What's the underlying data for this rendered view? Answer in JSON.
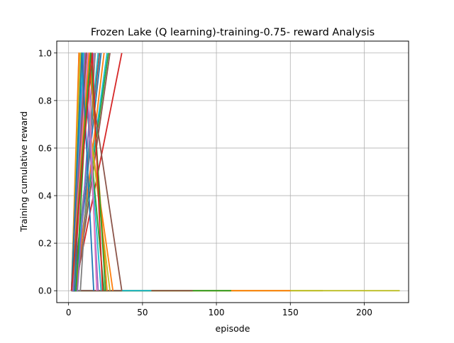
{
  "chart_data": {
    "type": "line",
    "title": "Frozen Lake (Q learning)-training-0.75- reward Analysis",
    "xlabel": "episode",
    "ylabel": "Training cumulative reward",
    "xlim": [
      -8,
      230
    ],
    "ylim": [
      -0.05,
      1.05
    ],
    "xticks": [
      0,
      50,
      100,
      150,
      200
    ],
    "yticks": [
      0.0,
      0.2,
      0.4,
      0.6,
      0.8,
      1.0
    ],
    "xtick_labels": [
      "0",
      "50",
      "100",
      "150",
      "200"
    ],
    "ytick_labels": [
      "0.0",
      "0.2",
      "0.4",
      "0.6",
      "0.8",
      "1.0"
    ],
    "grid": true,
    "legend": "none",
    "palette": [
      "#1f77b4",
      "#ff7f0e",
      "#2ca02c",
      "#d62728",
      "#9467bd",
      "#8c564b",
      "#e377c2",
      "#7f7f7f",
      "#bcbd22",
      "#17becf"
    ],
    "series": [
      {
        "x": [
          2,
          224
        ],
        "y": [
          0,
          0
        ],
        "color": "#bcbd22"
      },
      {
        "x": [
          2,
          172
        ],
        "y": [
          0,
          0
        ],
        "color": "#bcbd22"
      },
      {
        "x": [
          2,
          150
        ],
        "y": [
          0,
          0
        ],
        "color": "#ff7f0e"
      },
      {
        "x": [
          2,
          110
        ],
        "y": [
          0,
          0
        ],
        "color": "#2ca02c"
      },
      {
        "x": [
          2,
          84
        ],
        "y": [
          0,
          0
        ],
        "color": "#8c564b"
      },
      {
        "x": [
          2,
          56
        ],
        "y": [
          0,
          0
        ],
        "color": "#17becf"
      },
      {
        "x": [
          2,
          36
        ],
        "y": [
          0,
          0
        ],
        "color": "#8c564b"
      },
      {
        "x": [
          2,
          4,
          36
        ],
        "y": [
          0,
          0,
          1
        ],
        "color": "#d62728"
      },
      {
        "x": [
          2,
          5,
          28
        ],
        "y": [
          0,
          0,
          1
        ],
        "color": "#8c564b"
      },
      {
        "x": [
          2,
          4,
          27
        ],
        "y": [
          0,
          0,
          1
        ],
        "color": "#2ca02c"
      },
      {
        "x": [
          2,
          4,
          26
        ],
        "y": [
          0,
          0,
          1
        ],
        "color": "#17becf"
      },
      {
        "x": [
          2,
          5,
          24
        ],
        "y": [
          0,
          0,
          1
        ],
        "color": "#ff7f0e"
      },
      {
        "x": [
          2,
          4,
          22
        ],
        "y": [
          0,
          0,
          1
        ],
        "color": "#1f77b4"
      },
      {
        "x": [
          2,
          3,
          21
        ],
        "y": [
          0,
          0,
          1
        ],
        "color": "#8c564b"
      },
      {
        "x": [
          2,
          4,
          20
        ],
        "y": [
          0,
          0,
          1
        ],
        "color": "#17becf"
      },
      {
        "x": [
          2,
          8,
          18
        ],
        "y": [
          0,
          0,
          1
        ],
        "color": "#7f7f7f"
      },
      {
        "x": [
          2,
          6,
          17
        ],
        "y": [
          0,
          0,
          1
        ],
        "color": "#9467bd"
      },
      {
        "x": [
          2,
          3,
          15
        ],
        "y": [
          0,
          0,
          1
        ],
        "color": "#e377c2"
      },
      {
        "x": [
          2,
          5,
          14
        ],
        "y": [
          0,
          0,
          1
        ],
        "color": "#2ca02c"
      },
      {
        "x": [
          2,
          4,
          12
        ],
        "y": [
          0,
          0,
          1
        ],
        "color": "#d62728"
      },
      {
        "x": [
          2,
          3,
          11
        ],
        "y": [
          0,
          0,
          1
        ],
        "color": "#ff7f0e"
      },
      {
        "x": [
          2,
          4,
          10
        ],
        "y": [
          0,
          0,
          1
        ],
        "color": "#1f77b4"
      },
      {
        "x": [
          2,
          3,
          8
        ],
        "y": [
          0,
          0,
          1
        ],
        "color": "#bcbd22"
      },
      {
        "x": [
          2,
          3,
          7
        ],
        "y": [
          0,
          0,
          1
        ],
        "color": "#9467bd"
      },
      {
        "x": [
          2,
          7,
          30
        ],
        "y": [
          0,
          1,
          0
        ],
        "color": "#ff7f0e"
      },
      {
        "x": [
          2,
          8,
          28
        ],
        "y": [
          0,
          1,
          0
        ],
        "color": "#bcbd22"
      },
      {
        "x": [
          2,
          9,
          24
        ],
        "y": [
          0,
          1,
          0
        ],
        "color": "#2ca02c"
      },
      {
        "x": [
          2,
          10,
          22
        ],
        "y": [
          0,
          1,
          0
        ],
        "color": "#17becf"
      },
      {
        "x": [
          2,
          11,
          20
        ],
        "y": [
          0,
          1,
          0
        ],
        "color": "#9467bd"
      },
      {
        "x": [
          2,
          12,
          36
        ],
        "y": [
          0,
          1,
          0
        ],
        "color": "#8c564b"
      },
      {
        "x": [
          2,
          13,
          19
        ],
        "y": [
          0,
          1,
          0
        ],
        "color": "#e377c2"
      },
      {
        "x": [
          2,
          14,
          26
        ],
        "y": [
          0,
          1,
          0
        ],
        "color": "#ff7f0e"
      },
      {
        "x": [
          2,
          9,
          17
        ],
        "y": [
          0,
          1,
          0
        ],
        "color": "#1f77b4"
      },
      {
        "x": [
          2,
          15,
          25
        ],
        "y": [
          0,
          1,
          0
        ],
        "color": "#2ca02c"
      },
      {
        "x": [
          2,
          16,
          23
        ],
        "y": [
          0,
          1,
          0
        ],
        "color": "#d62728"
      }
    ]
  }
}
